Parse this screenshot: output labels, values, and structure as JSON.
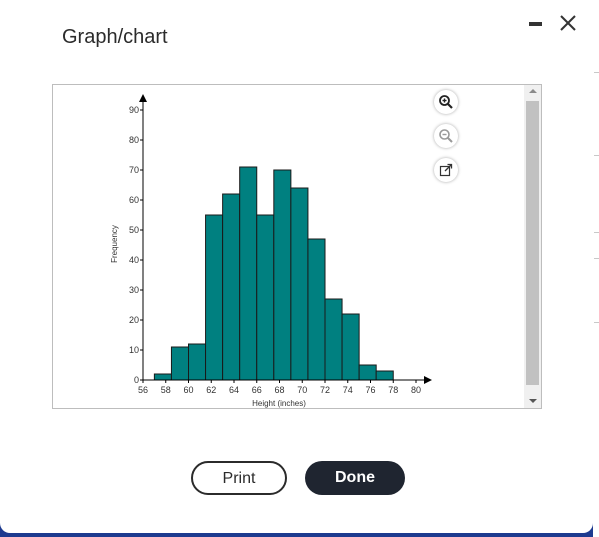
{
  "dialog": {
    "title": "Graph/chart",
    "print_label": "Print",
    "done_label": "Done"
  },
  "toolbar": {
    "icons": [
      "zoom-in-icon",
      "zoom-out-icon",
      "popout-icon"
    ]
  },
  "colors": {
    "bar_fill": "#008080",
    "bar_stroke": "#1a1a1a",
    "done_bg": "#1f2530",
    "backdrop": "#1d3a8f"
  },
  "chart_data": {
    "type": "bar",
    "xlabel": "Height (inches)",
    "ylabel": "Frequency",
    "x_ticks": [
      56,
      58,
      60,
      62,
      64,
      66,
      68,
      70,
      72,
      74,
      76,
      78,
      80
    ],
    "y_ticks": [
      0,
      10,
      20,
      30,
      40,
      50,
      60,
      70,
      80,
      90
    ],
    "xlim": [
      56,
      80
    ],
    "ylim": [
      0,
      90
    ],
    "bins": [
      {
        "start": 57,
        "end": 58.5,
        "value": 2
      },
      {
        "start": 58.5,
        "end": 60,
        "value": 11
      },
      {
        "start": 60,
        "end": 61.5,
        "value": 12
      },
      {
        "start": 61.5,
        "end": 63,
        "value": 55
      },
      {
        "start": 63,
        "end": 64.5,
        "value": 62
      },
      {
        "start": 64.5,
        "end": 66,
        "value": 71
      },
      {
        "start": 66,
        "end": 67.5,
        "value": 55
      },
      {
        "start": 67.5,
        "end": 69,
        "value": 70
      },
      {
        "start": 69,
        "end": 70.5,
        "value": 64
      },
      {
        "start": 70.5,
        "end": 72,
        "value": 47
      },
      {
        "start": 72,
        "end": 73.5,
        "value": 27
      },
      {
        "start": 73.5,
        "end": 75,
        "value": 22
      },
      {
        "start": 75,
        "end": 76.5,
        "value": 5
      },
      {
        "start": 76.5,
        "end": 78,
        "value": 3
      }
    ],
    "grid": false
  }
}
